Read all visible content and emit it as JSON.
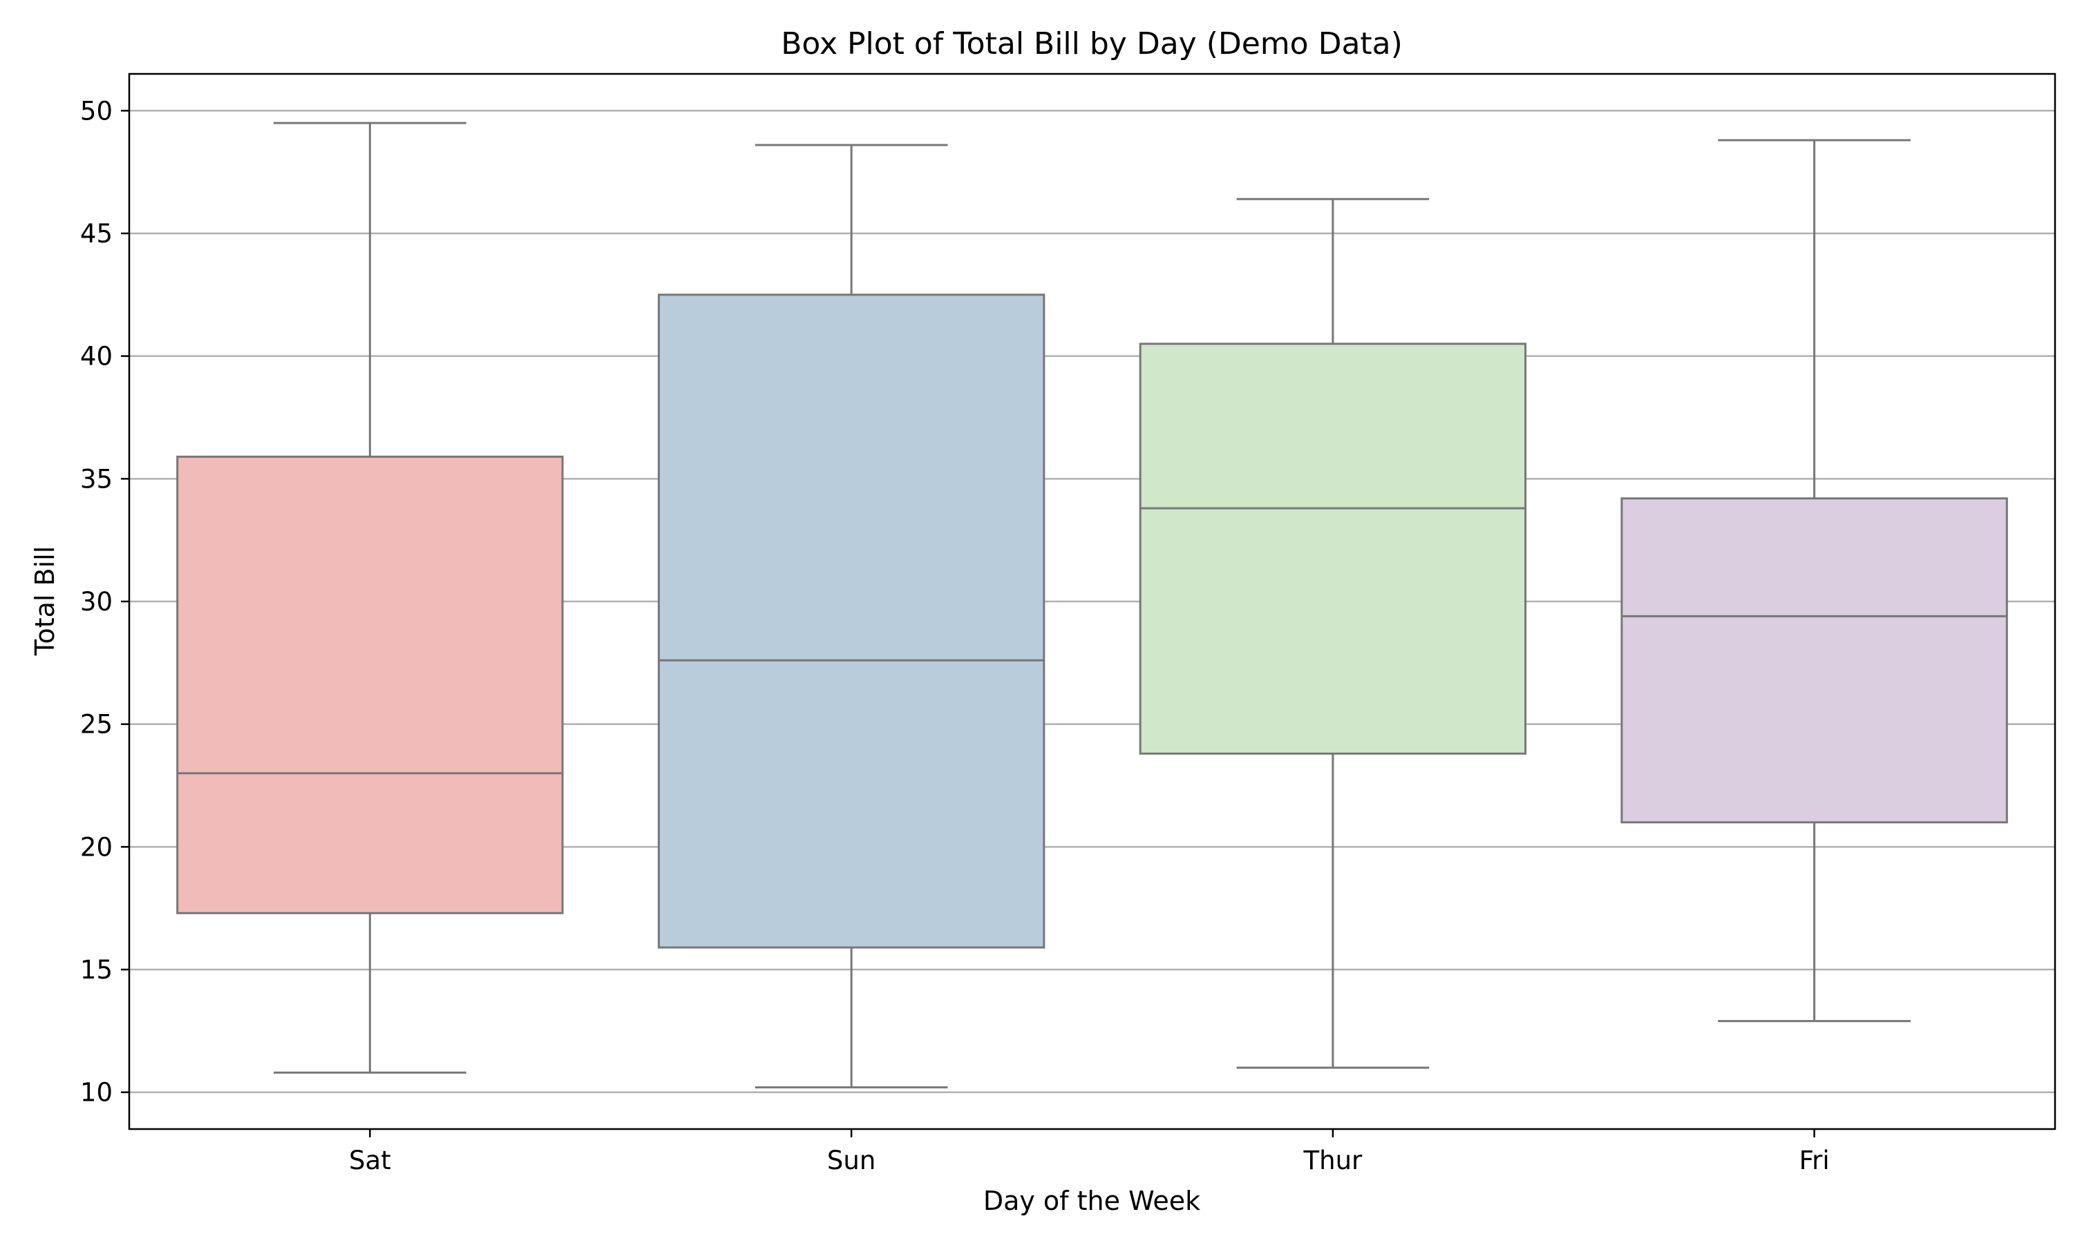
{
  "chart_data": {
    "type": "box",
    "title": "Box Plot of Total Bill by Day (Demo Data)",
    "xlabel": "Day of the Week",
    "ylabel": "Total Bill",
    "ylim": [
      8.5,
      51.5
    ],
    "yticks": [
      10,
      15,
      20,
      25,
      30,
      35,
      40,
      45,
      50
    ],
    "grid": "horizontal",
    "categories": [
      "Sat",
      "Sun",
      "Thur",
      "Fri"
    ],
    "boxes": [
      {
        "category": "Sat",
        "whisker_low": 10.8,
        "q1": 17.3,
        "median": 23.0,
        "q3": 35.9,
        "whisker_high": 49.5,
        "color": "#f1bbb9"
      },
      {
        "category": "Sun",
        "whisker_low": 10.2,
        "q1": 15.9,
        "median": 27.6,
        "q3": 42.5,
        "whisker_high": 48.6,
        "color": "#b9ccdc"
      },
      {
        "category": "Thur",
        "whisker_low": 11.0,
        "q1": 23.8,
        "median": 33.8,
        "q3": 40.5,
        "whisker_high": 46.4,
        "color": "#d0e7ca"
      },
      {
        "category": "Fri",
        "whisker_low": 12.9,
        "q1": 21.0,
        "median": 29.4,
        "q3": 34.2,
        "whisker_high": 48.8,
        "color": "#dbcee1"
      }
    ]
  }
}
